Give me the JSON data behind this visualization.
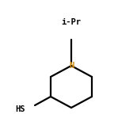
{
  "background_color": "#ffffff",
  "ring_color": "#000000",
  "N_color": "#cc8800",
  "label_iPr_color": "#000000",
  "label_HS_color": "#000000",
  "label_iPr": "i-Pr",
  "label_HS": "HS",
  "figsize": [
    1.49,
    1.73
  ],
  "dpi": 100,
  "bond_lw": 1.6
}
